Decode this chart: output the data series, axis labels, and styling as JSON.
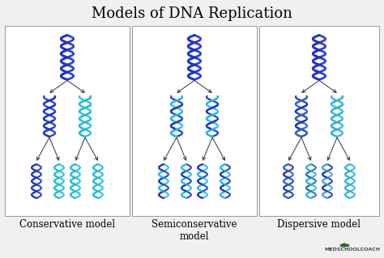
{
  "title": "Models of DNA Replication",
  "title_fontsize": 13,
  "title_font": "DejaVu Serif",
  "background_color": "#f0f0f0",
  "panel_background": "#ffffff",
  "panel_border_color": "#999999",
  "models": [
    "Conservative model",
    "Semiconservative\nmodel",
    "Dispersive model"
  ],
  "label_fontsize": 8.5,
  "label_font": "DejaVu Serif",
  "colors": {
    "dark_blue": "#2233cc",
    "medium_blue": "#4455dd",
    "cyan": "#22bbdd",
    "light_blue": "#6699cc",
    "mixed_left": "#3366bb",
    "mixed_right": "#44aacc"
  },
  "arrow_color": "#333333",
  "logo_text": "MEDSCHOOLCOACH",
  "logo_fontsize": 4.5,
  "fig_width": 4.74,
  "fig_height": 3.19,
  "dpi": 100
}
